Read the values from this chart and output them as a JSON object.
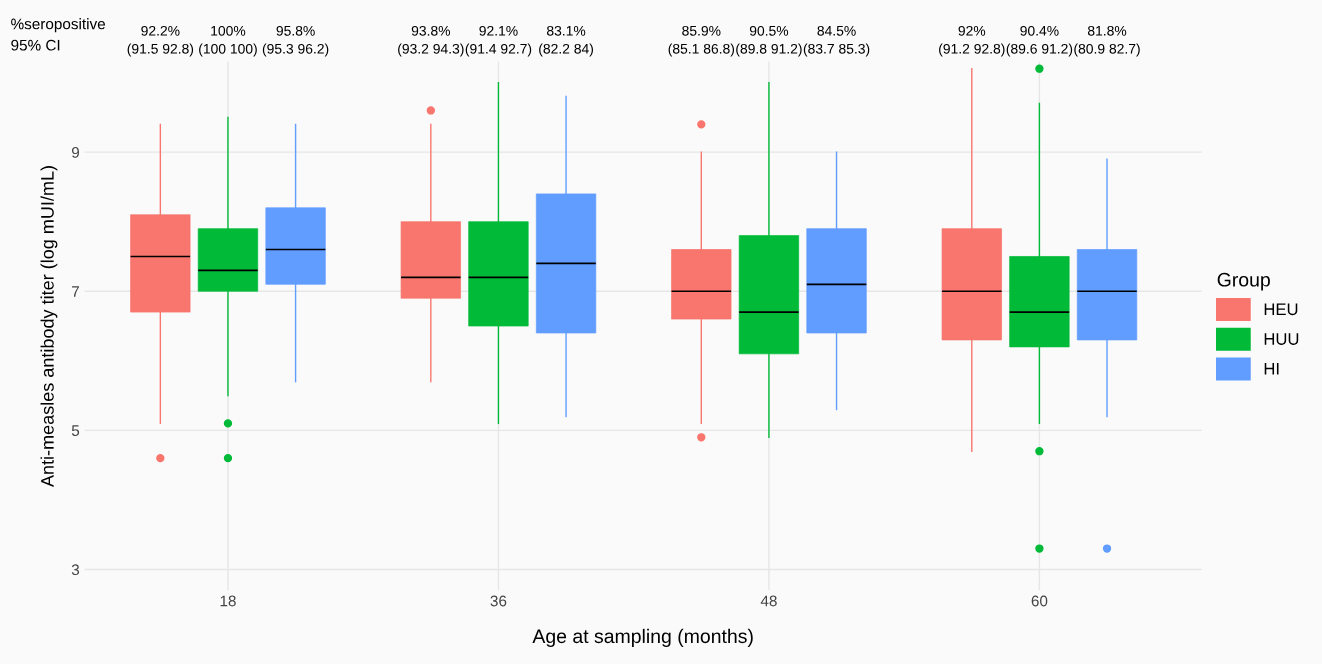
{
  "chart_data": {
    "type": "box",
    "xlabel": "Age at sampling (months)",
    "ylabel": "Anti-measles antibody titer (log mUI/mL)",
    "legend_title": "Group",
    "categories": [
      "18",
      "36",
      "48",
      "60"
    ],
    "series": [
      {
        "name": "HEU",
        "color": "#f8766d",
        "boxes": [
          {
            "low": 5.1,
            "q1": 6.7,
            "median": 7.5,
            "q3": 8.1,
            "high": 9.4,
            "outliers": [
              4.6
            ]
          },
          {
            "low": 5.7,
            "q1": 6.9,
            "median": 7.2,
            "q3": 8.0,
            "high": 9.4,
            "outliers": [
              9.6
            ]
          },
          {
            "low": 5.1,
            "q1": 6.6,
            "median": 7.0,
            "q3": 7.6,
            "high": 9.0,
            "outliers": [
              9.4,
              4.9
            ]
          },
          {
            "low": 4.7,
            "q1": 6.3,
            "median": 7.0,
            "q3": 7.9,
            "high": 10.2
          }
        ]
      },
      {
        "name": "HUU",
        "color": "#00ba38",
        "boxes": [
          {
            "low": 5.5,
            "q1": 7.0,
            "median": 7.3,
            "q3": 7.9,
            "high": 9.5,
            "outliers": [
              5.1,
              4.6
            ]
          },
          {
            "low": 5.1,
            "q1": 6.5,
            "median": 7.2,
            "q3": 8.0,
            "high": 10.0
          },
          {
            "low": 4.9,
            "q1": 6.1,
            "median": 6.7,
            "q3": 7.8,
            "high": 10.0
          },
          {
            "low": 5.1,
            "q1": 6.2,
            "median": 6.7,
            "q3": 7.5,
            "high": 9.7,
            "outliers": [
              10.2,
              4.7,
              3.3
            ]
          }
        ]
      },
      {
        "name": "HI",
        "color": "#619cff",
        "boxes": [
          {
            "low": 5.7,
            "q1": 7.1,
            "median": 7.6,
            "q3": 8.2,
            "high": 9.4
          },
          {
            "low": 5.2,
            "q1": 6.4,
            "median": 7.4,
            "q3": 8.4,
            "high": 9.8
          },
          {
            "low": 5.3,
            "q1": 6.4,
            "median": 7.1,
            "q3": 7.9,
            "high": 9.0
          },
          {
            "low": 5.2,
            "q1": 6.3,
            "median": 7.0,
            "q3": 7.6,
            "high": 8.9,
            "outliers": [
              3.3
            ]
          }
        ]
      }
    ],
    "ylim": [
      2.7,
      10.3
    ],
    "yticks": [
      3,
      5,
      7,
      9
    ],
    "grid": true,
    "legend": "right",
    "annotations": [
      "%seropositive",
      "95% CI",
      "92.2%\n(91.5 92.8)",
      "100%\n(100 100)",
      "95.8%\n(95.3 96.2)",
      "93.8%\n(93.2 94.3)",
      "92.1%\n(91.4 92.7)",
      "83.1%\n(82.2 84)",
      "85.9%\n(85.1 86.8)",
      "90.5%\n(89.8 91.2)",
      "84.5%\n(83.7 85.3)",
      "92%\n(91.2 92.8)",
      "90.4%\n(89.6 91.2)",
      "81.8%\n(80.9 82.7)"
    ]
  }
}
